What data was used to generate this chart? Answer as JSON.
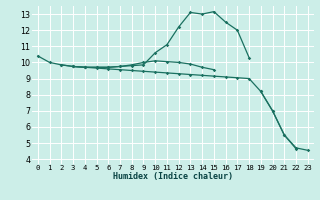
{
  "xlabel": "Humidex (Indice chaleur)",
  "bg_color": "#cceee8",
  "grid_color": "#ffffff",
  "line_color": "#1a7060",
  "xlim": [
    -0.5,
    23.5
  ],
  "ylim": [
    3.7,
    13.5
  ],
  "xticks": [
    0,
    1,
    2,
    3,
    4,
    5,
    6,
    7,
    8,
    9,
    10,
    11,
    12,
    13,
    14,
    15,
    16,
    17,
    18,
    19,
    20,
    21,
    22,
    23
  ],
  "yticks": [
    4,
    5,
    6,
    7,
    8,
    9,
    10,
    11,
    12,
    13
  ],
  "line1_x": [
    0,
    1,
    2,
    3,
    4,
    5,
    6,
    7,
    8,
    9,
    10,
    11,
    12,
    13,
    14,
    15,
    16,
    17,
    18
  ],
  "line1_y": [
    10.4,
    10.0,
    9.85,
    9.75,
    9.7,
    9.7,
    9.7,
    9.75,
    9.8,
    9.85,
    10.6,
    11.1,
    12.2,
    13.1,
    13.0,
    13.15,
    12.5,
    12.0,
    10.3
  ],
  "line2_x": [
    2,
    3,
    4,
    5,
    6,
    7,
    8,
    9,
    10,
    11,
    12,
    13,
    14,
    15
  ],
  "line2_y": [
    9.85,
    9.75,
    9.7,
    9.7,
    9.7,
    9.75,
    9.85,
    10.0,
    10.1,
    10.05,
    10.0,
    9.9,
    9.7,
    9.55
  ],
  "line3_x": [
    3,
    4,
    5,
    6,
    7,
    8,
    9,
    10,
    11,
    12,
    13,
    14,
    15,
    16,
    17,
    18,
    19,
    20,
    21,
    22
  ],
  "line3_y": [
    9.75,
    9.7,
    9.65,
    9.6,
    9.55,
    9.5,
    9.45,
    9.4,
    9.35,
    9.3,
    9.25,
    9.2,
    9.15,
    9.1,
    9.05,
    9.0,
    8.2,
    7.0,
    5.5,
    4.65
  ],
  "line4_x": [
    19,
    20,
    21,
    22,
    23
  ],
  "line4_y": [
    8.2,
    7.0,
    5.5,
    4.7,
    4.55
  ],
  "xlabel_fontsize": 6.0,
  "tick_fontsize": 5.2,
  "ytick_fontsize": 5.8,
  "linewidth": 0.9,
  "markersize": 1.8
}
